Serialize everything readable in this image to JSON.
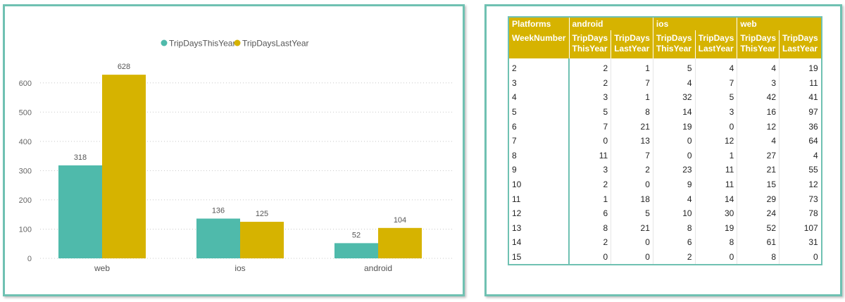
{
  "colors": {
    "this_year": "#4fbaab",
    "last_year": "#d6b300",
    "panel_border": "#6fc1b2",
    "header_bg": "#d6b300"
  },
  "chart_data": {
    "type": "bar",
    "title": "",
    "xlabel": "",
    "ylabel": "",
    "categories": [
      "web",
      "ios",
      "android"
    ],
    "series": [
      {
        "name": "TripDaysThisYear",
        "values": [
          318,
          136,
          52
        ],
        "color": "#4fbaab"
      },
      {
        "name": "TripDaysLastYear",
        "values": [
          628,
          125,
          104
        ],
        "color": "#d6b300"
      }
    ],
    "yticks": [
      "0",
      "100",
      "200",
      "300",
      "400",
      "500",
      "600"
    ],
    "ylim": [
      0,
      650
    ],
    "grid": true,
    "gridStyle": "dotted",
    "legend": "top-center",
    "data_labels": true
  },
  "table": {
    "header_top": {
      "row_field": "Platforms",
      "groups": [
        "android",
        "ios",
        "web"
      ]
    },
    "header_sub": {
      "row_field": "WeekNumber",
      "cols": [
        [
          "TripDays",
          "ThisYear"
        ],
        [
          "TripDays",
          "LastYear"
        ],
        [
          "TripDays",
          "ThisYear"
        ],
        [
          "TripDays",
          "LastYear"
        ],
        [
          "TripDays",
          "ThisYear"
        ],
        [
          "TripDays",
          "LastYear"
        ]
      ]
    },
    "rows": [
      [
        "2",
        "2",
        "1",
        "5",
        "4",
        "4",
        "19"
      ],
      [
        "3",
        "2",
        "7",
        "4",
        "7",
        "3",
        "11"
      ],
      [
        "4",
        "3",
        "1",
        "32",
        "5",
        "42",
        "41"
      ],
      [
        "5",
        "5",
        "8",
        "14",
        "3",
        "16",
        "97"
      ],
      [
        "6",
        "7",
        "21",
        "19",
        "0",
        "12",
        "36"
      ],
      [
        "7",
        "0",
        "13",
        "0",
        "12",
        "4",
        "64"
      ],
      [
        "8",
        "11",
        "7",
        "0",
        "1",
        "27",
        "4"
      ],
      [
        "9",
        "3",
        "2",
        "23",
        "11",
        "21",
        "55"
      ],
      [
        "10",
        "2",
        "0",
        "9",
        "11",
        "15",
        "12"
      ],
      [
        "11",
        "1",
        "18",
        "4",
        "14",
        "29",
        "73"
      ],
      [
        "12",
        "6",
        "5",
        "10",
        "30",
        "24",
        "78"
      ],
      [
        "13",
        "8",
        "21",
        "8",
        "19",
        "52",
        "107"
      ],
      [
        "14",
        "2",
        "0",
        "6",
        "8",
        "61",
        "31"
      ],
      [
        "15",
        "0",
        "0",
        "2",
        "0",
        "8",
        "0"
      ]
    ]
  }
}
